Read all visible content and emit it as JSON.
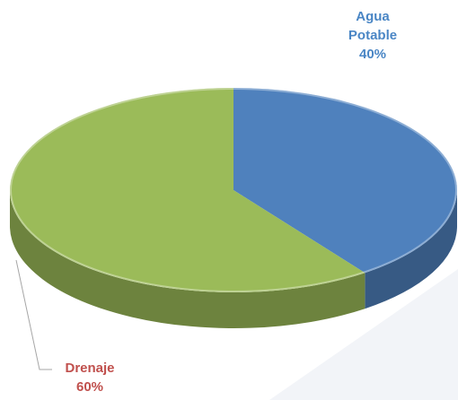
{
  "chart_data": {
    "type": "pie",
    "categories": [
      "Agua Potable",
      "Drenaje"
    ],
    "values": [
      40,
      60
    ],
    "value_labels": [
      "40%",
      "60%"
    ],
    "colors": [
      "#4f81bd",
      "#9bbb59"
    ],
    "label_colors": [
      "#4a86c5",
      "#c0504d"
    ]
  }
}
